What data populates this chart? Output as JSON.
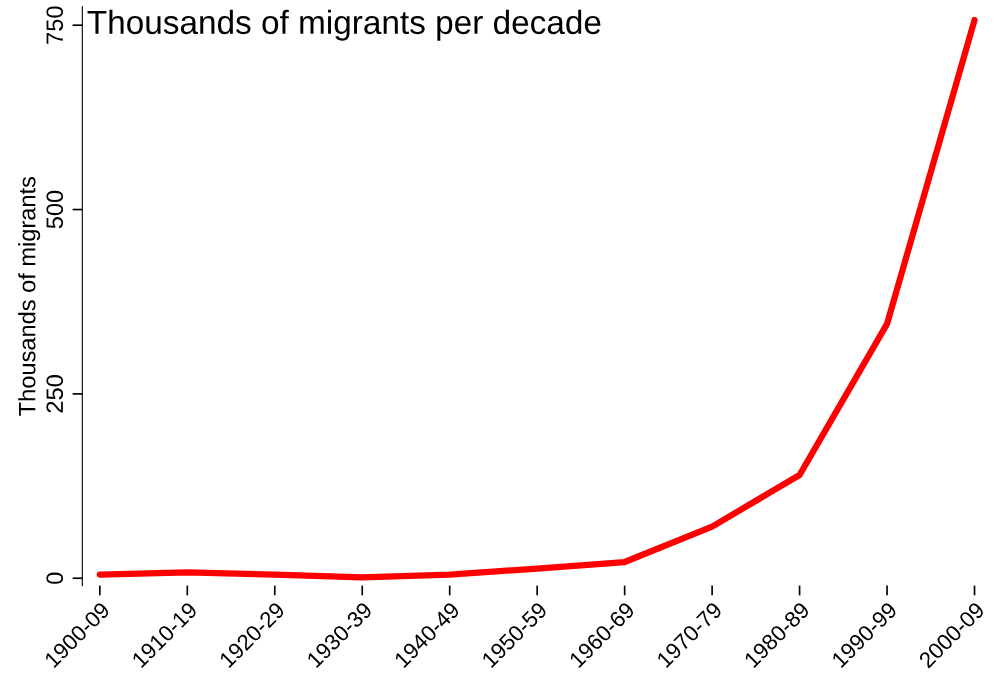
{
  "chart_data": {
    "type": "line",
    "title": "Thousands of migrants per decade",
    "ylabel": "Thousands of migrants",
    "categories": [
      "1900-09",
      "1910-19",
      "1920-29",
      "1930-39",
      "1940-49",
      "1950-59",
      "1960-69",
      "1970-79",
      "1980-89",
      "1990-99",
      "2000-09"
    ],
    "series": [
      {
        "color": "#ff0000",
        "values": [
          5,
          8,
          5,
          1,
          5,
          13,
          22,
          70,
          140,
          345,
          757
        ]
      }
    ],
    "ylim": [
      -10,
      775
    ],
    "yticks": [
      0,
      250,
      500,
      750
    ],
    "grid": false,
    "legend": false,
    "marker": "none",
    "line_style": "solid"
  }
}
